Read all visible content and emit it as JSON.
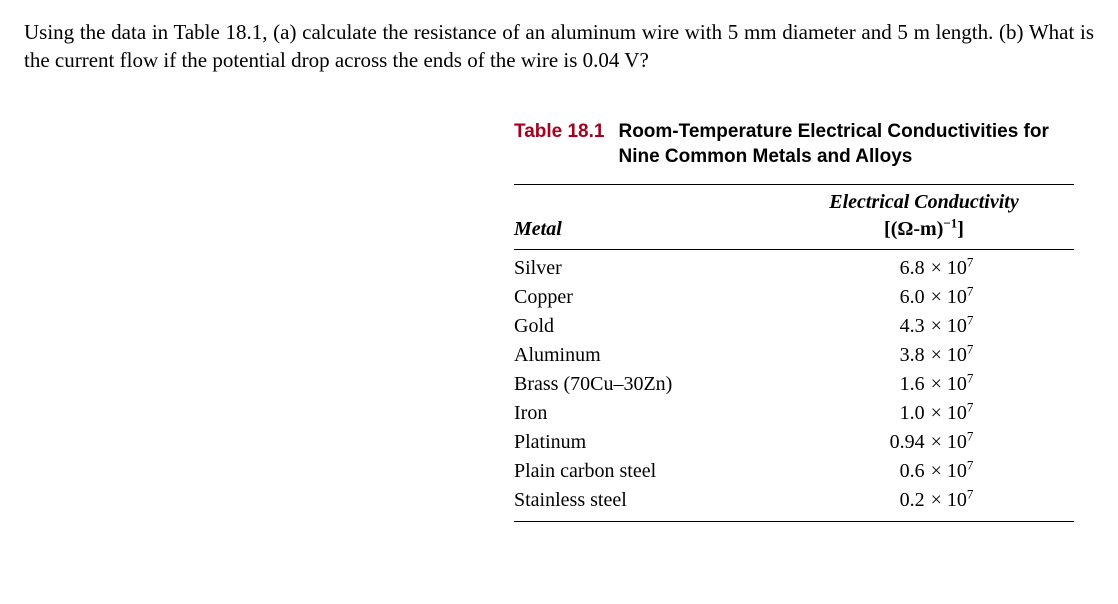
{
  "question": "Using the data in Table 18.1, (a) calculate the resistance of an aluminum wire with 5 mm diameter and 5 m length. (b) What is the current flow if the potential drop across the ends of the wire is 0.04 V?",
  "table": {
    "label": "Table 18.1",
    "title": "Room-Temperature Electrical Conductivities for Nine Common Metals and Alloys",
    "col_metal_header": "Metal",
    "col_cond_header_line1": "Electrical Conductivity",
    "col_cond_header_line2_prefix": "[(Ω-m)",
    "col_cond_header_line2_exp": "−1",
    "col_cond_header_line2_suffix": "]",
    "exp": "7",
    "rows": [
      {
        "metal": "Silver",
        "coef": "6.8"
      },
      {
        "metal": "Copper",
        "coef": "6.0"
      },
      {
        "metal": "Gold",
        "coef": "4.3"
      },
      {
        "metal": "Aluminum",
        "coef": "3.8"
      },
      {
        "metal": "Brass (70Cu–30Zn)",
        "coef": "1.6"
      },
      {
        "metal": "Iron",
        "coef": "1.0"
      },
      {
        "metal": "Platinum",
        "coef": "0.94"
      },
      {
        "metal": "Plain carbon steel",
        "coef": "0.6"
      },
      {
        "metal": "Stainless steel",
        "coef": "0.2"
      }
    ]
  }
}
